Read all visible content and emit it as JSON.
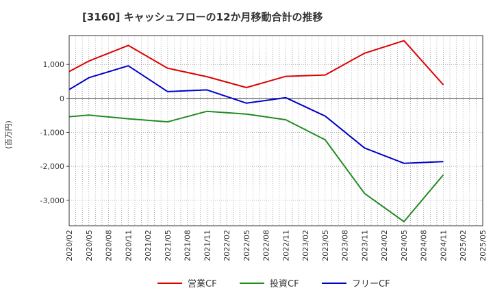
{
  "chart_data": {
    "type": "line",
    "title": "[3160]  キャッシュフローの12か月移動合計の推移",
    "ylabel": "(百万円)",
    "xlabel": "",
    "ylim": [
      -3750,
      1850
    ],
    "yticks": [
      1000,
      0,
      -1000,
      -2000,
      -3000
    ],
    "ytick_labels": [
      "1,000",
      "0",
      "-1,000",
      "-2,000",
      "-3,000"
    ],
    "x_ticks": [
      "2020/02",
      "2020/05",
      "2020/08",
      "2020/11",
      "2021/02",
      "2021/05",
      "2021/08",
      "2021/11",
      "2022/02",
      "2022/05",
      "2022/08",
      "2022/11",
      "2023/02",
      "2023/05",
      "2023/08",
      "2023/11",
      "2024/02",
      "2024/05",
      "2024/08",
      "2024/11",
      "2025/02",
      "2025/05"
    ],
    "grid": true,
    "legend_position": "bottom",
    "series": [
      {
        "name": "営業CF",
        "color": "#dd0000",
        "x": [
          "2020/02",
          "2020/05",
          "2020/11",
          "2021/05",
          "2021/11",
          "2022/05",
          "2022/11",
          "2023/05",
          "2023/11",
          "2024/05",
          "2024/11"
        ],
        "values": [
          790,
          1100,
          1560,
          890,
          640,
          320,
          650,
          690,
          1330,
          1700,
          400
        ]
      },
      {
        "name": "投資CF",
        "color": "#228b22",
        "x": [
          "2020/02",
          "2020/05",
          "2020/11",
          "2021/05",
          "2021/11",
          "2022/05",
          "2022/11",
          "2023/05",
          "2023/11",
          "2024/05",
          "2024/11"
        ],
        "values": [
          -540,
          -490,
          -600,
          -690,
          -380,
          -460,
          -630,
          -1220,
          -2800,
          -3630,
          -2250
        ]
      },
      {
        "name": "フリーCF",
        "color": "#0000cc",
        "x": [
          "2020/02",
          "2020/05",
          "2020/11",
          "2021/05",
          "2021/11",
          "2022/05",
          "2022/11",
          "2023/05",
          "2023/11",
          "2024/05",
          "2024/11"
        ],
        "values": [
          260,
          610,
          960,
          200,
          250,
          -140,
          20,
          -520,
          -1460,
          -1910,
          -1860
        ]
      }
    ]
  }
}
